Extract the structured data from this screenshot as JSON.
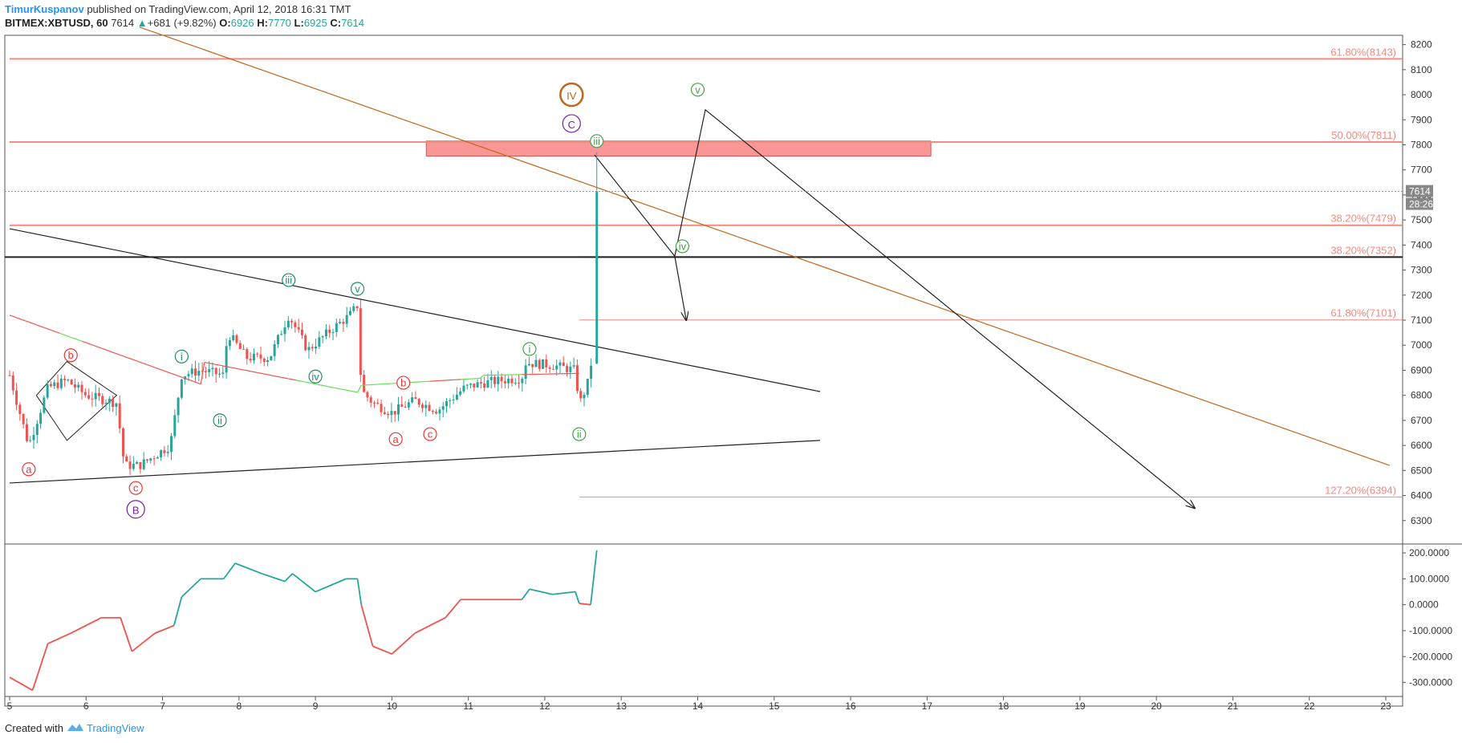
{
  "header": {
    "author": "TimurKuspanov",
    "published_text": " published on TradingView.com, April 12, 2018 16:31 TMT",
    "symbol": "BITMEX:XBTUSD, 60",
    "last": "7614",
    "change": "+681 (+9.82%)",
    "open_label": "O:",
    "open": "6926",
    "high_label": "H:",
    "high": "7770",
    "low_label": "L:",
    "low": "6925",
    "close_label": "C:",
    "close": "7614"
  },
  "footer": {
    "created_with": "Created with",
    "brand": "TradingView"
  },
  "colors": {
    "up": "#26a69a",
    "down": "#ef5350",
    "fib": "#f28b82",
    "zone": "#f77c7c",
    "orange": "#c0671b",
    "purple": "#7b1fa2",
    "green": "#43a047",
    "teal": "#1f8a70",
    "red": "#e53935"
  },
  "chart_data": {
    "type": "candlestick",
    "price_axis": {
      "ylim": [
        6200,
        8250
      ],
      "ticks": [
        6300,
        6400,
        6500,
        6600,
        6700,
        6800,
        6900,
        7000,
        7100,
        7200,
        7300,
        7400,
        7500,
        7600,
        7700,
        7800,
        7900,
        8000,
        8100,
        8200
      ]
    },
    "time_axis": {
      "xlim": [
        5,
        23
      ],
      "ticks": [
        "5",
        "6",
        "7",
        "8",
        "9",
        "10",
        "11",
        "12",
        "13",
        "14",
        "15",
        "16",
        "17",
        "18",
        "19",
        "20",
        "21",
        "22",
        "23"
      ]
    },
    "last_price_label": "7614",
    "countdown_label": "28:26",
    "fib_levels": [
      {
        "label": "61.80%(8143)",
        "price": 8143,
        "from": 5,
        "strong": true
      },
      {
        "label": "50.00%(7811)",
        "price": 7811,
        "from": 5,
        "strong": true
      },
      {
        "label": "38.20%(7479)",
        "price": 7479,
        "from": 5,
        "strong": true
      },
      {
        "label": "38.20%(7352)",
        "price": 7352,
        "from": 12.45,
        "strong": true
      },
      {
        "label": "61.80%(7101)",
        "price": 7101,
        "from": 12.45,
        "strong": false
      },
      {
        "label": "127.20%(6394)",
        "price": 6394,
        "from": 12.45,
        "strong": false
      }
    ],
    "resistance_zone": {
      "x": [
        10.45,
        17.05
      ],
      "price": [
        7755,
        7815
      ]
    },
    "horizontal_line": {
      "price": 7352
    },
    "trendlines": [
      {
        "name": "upper-wedge",
        "p1": [
          5,
          7465
        ],
        "p2": [
          15.6,
          6815
        ],
        "color": "#222222"
      },
      {
        "name": "lower-wedge",
        "p1": [
          5,
          6450
        ],
        "p2": [
          15.6,
          6620
        ],
        "color": "#222222"
      },
      {
        "name": "long-descending",
        "p1": [
          6.7,
          8270
        ],
        "p2": [
          23.05,
          6520
        ],
        "color": "#c0671b"
      }
    ],
    "projection_path": [
      [
        12.65,
        7760
      ],
      [
        13.7,
        7355
      ],
      [
        13.85,
        7100
      ]
    ],
    "projection_path2": [
      [
        13.7,
        7355
      ],
      [
        14.1,
        7940
      ],
      [
        20.5,
        6350
      ]
    ],
    "diamond": [
      [
        5.35,
        6800
      ],
      [
        5.75,
        6935
      ],
      [
        6.4,
        6800
      ],
      [
        5.75,
        6620
      ]
    ],
    "wave_labels": [
      {
        "text": "a",
        "x": 5.25,
        "price": 6505,
        "color": "#e53935",
        "size": "small"
      },
      {
        "text": "b",
        "x": 5.8,
        "price": 6960,
        "color": "#e53935",
        "size": "small"
      },
      {
        "text": "c",
        "x": 6.65,
        "price": 6430,
        "color": "#e53935",
        "size": "small"
      },
      {
        "text": "B",
        "x": 6.65,
        "price": 6345,
        "color": "#7b1fa2",
        "size": "large"
      },
      {
        "text": "i",
        "x": 7.25,
        "price": 6955,
        "color": "#1f8a70",
        "size": "small"
      },
      {
        "text": "ii",
        "x": 7.75,
        "price": 6700,
        "color": "#1f8a70",
        "size": "small"
      },
      {
        "text": "iii",
        "x": 8.65,
        "price": 7260,
        "color": "#1f8a70",
        "size": "small"
      },
      {
        "text": "iv",
        "x": 9.0,
        "price": 6875,
        "color": "#1f8a70",
        "size": "small"
      },
      {
        "text": "v",
        "x": 9.55,
        "price": 7225,
        "color": "#1f8a70",
        "size": "small"
      },
      {
        "text": "b",
        "x": 10.15,
        "price": 6850,
        "color": "#e53935",
        "size": "small"
      },
      {
        "text": "a",
        "x": 10.05,
        "price": 6625,
        "color": "#e53935",
        "size": "small"
      },
      {
        "text": "c",
        "x": 10.5,
        "price": 6645,
        "color": "#e53935",
        "size": "small"
      },
      {
        "text": "i",
        "x": 11.8,
        "price": 6985,
        "color": "#43a047",
        "size": "small"
      },
      {
        "text": "ii",
        "x": 12.45,
        "price": 6645,
        "color": "#43a047",
        "size": "small"
      },
      {
        "text": "iii",
        "x": 12.68,
        "price": 7815,
        "color": "#43a047",
        "size": "small"
      },
      {
        "text": "iv",
        "x": 13.8,
        "price": 7395,
        "color": "#43a047",
        "size": "small"
      },
      {
        "text": "v",
        "x": 14.0,
        "price": 8020,
        "color": "#43a047",
        "size": "small"
      },
      {
        "text": "C",
        "x": 12.35,
        "price": 7885,
        "color": "#7b1fa2",
        "size": "large"
      },
      {
        "text": "IV",
        "x": 12.35,
        "price": 8000,
        "color": "#c0671b",
        "size": "xlarge"
      }
    ],
    "indicator": {
      "ylim": [
        -360,
        225
      ],
      "ticks": [
        {
          "value": 200,
          "label": "200.0000"
        },
        {
          "value": 100,
          "label": "100.0000"
        },
        {
          "value": 0,
          "label": "0.0000"
        },
        {
          "value": -100,
          "label": "-100.0000"
        },
        {
          "value": -200,
          "label": "-200.0000"
        },
        {
          "value": -300,
          "label": "-300.0000"
        }
      ]
    }
  }
}
